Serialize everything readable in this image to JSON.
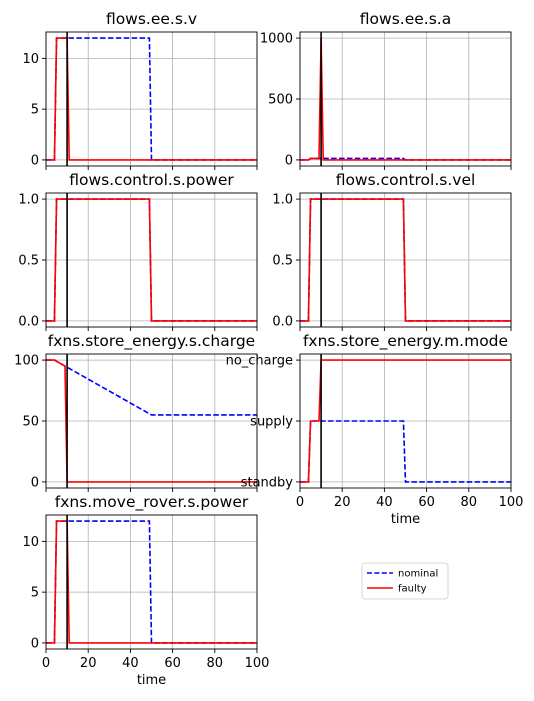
{
  "legend": {
    "entries": [
      {
        "label": "nominal",
        "color": "#0000ff",
        "style": "dashed"
      },
      {
        "label": "faulty",
        "color": "#ff0000",
        "style": "solid"
      }
    ]
  },
  "chart_data": [
    {
      "type": "line",
      "title": "flows.ee.s.v",
      "xlabel": "",
      "xlim": [
        0,
        100
      ],
      "ylim": [
        -0.6,
        12.6
      ],
      "xticks": [
        0,
        20,
        40,
        60,
        80,
        100
      ],
      "show_xticklabels": false,
      "yticks": [
        0,
        5,
        10
      ],
      "ytick_labels": [
        "0",
        "5",
        "10"
      ],
      "fault_time": 10,
      "series": [
        {
          "name": "nominal",
          "x": [
            0,
            4,
            5,
            49,
            50,
            100
          ],
          "y": [
            0,
            0,
            12,
            12,
            0,
            0
          ]
        },
        {
          "name": "faulty",
          "x": [
            0,
            4,
            5,
            10,
            11,
            100
          ],
          "y": [
            0,
            0,
            12,
            12,
            0,
            0
          ]
        }
      ]
    },
    {
      "type": "line",
      "title": "flows.ee.s.a",
      "xlabel": "",
      "xlim": [
        0,
        100
      ],
      "ylim": [
        -50,
        1050
      ],
      "xticks": [
        0,
        20,
        40,
        60,
        80,
        100
      ],
      "show_xticklabels": false,
      "yticks": [
        0,
        500,
        1000
      ],
      "ytick_labels": [
        "0",
        "500",
        "1000"
      ],
      "fault_time": 10,
      "series": [
        {
          "name": "nominal",
          "x": [
            0,
            4,
            5,
            49,
            50,
            100
          ],
          "y": [
            0,
            0,
            12,
            12,
            0,
            0
          ]
        },
        {
          "name": "faulty",
          "x": [
            0,
            4,
            5,
            9,
            10,
            11,
            100
          ],
          "y": [
            0,
            0,
            12,
            12,
            1000,
            0,
            0
          ]
        }
      ]
    },
    {
      "type": "line",
      "title": "flows.control.s.power",
      "xlabel": "",
      "xlim": [
        0,
        100
      ],
      "ylim": [
        -0.05,
        1.05
      ],
      "xticks": [
        0,
        20,
        40,
        60,
        80,
        100
      ],
      "show_xticklabels": false,
      "yticks": [
        0,
        0.5,
        1.0
      ],
      "ytick_labels": [
        "0.0",
        "0.5",
        "1.0"
      ],
      "fault_time": 10,
      "series": [
        {
          "name": "nominal",
          "x": [
            0,
            4,
            5,
            49,
            50,
            100
          ],
          "y": [
            0,
            0,
            1,
            1,
            0,
            0
          ]
        },
        {
          "name": "faulty",
          "x": [
            0,
            4,
            5,
            49,
            50,
            100
          ],
          "y": [
            0,
            0,
            1,
            1,
            0,
            0
          ]
        }
      ]
    },
    {
      "type": "line",
      "title": "flows.control.s.vel",
      "xlabel": "",
      "xlim": [
        0,
        100
      ],
      "ylim": [
        -0.05,
        1.05
      ],
      "xticks": [
        0,
        20,
        40,
        60,
        80,
        100
      ],
      "show_xticklabels": false,
      "yticks": [
        0,
        0.5,
        1.0
      ],
      "ytick_labels": [
        "0.0",
        "0.5",
        "1.0"
      ],
      "fault_time": 10,
      "series": [
        {
          "name": "nominal",
          "x": [
            0,
            4,
            5,
            49,
            50,
            100
          ],
          "y": [
            0,
            0,
            1,
            1,
            0,
            0
          ]
        },
        {
          "name": "faulty",
          "x": [
            0,
            4,
            5,
            49,
            50,
            100
          ],
          "y": [
            0,
            0,
            1,
            1,
            0,
            0
          ]
        }
      ]
    },
    {
      "type": "line",
      "title": "fxns.store_energy.s.charge",
      "xlabel": "",
      "xlim": [
        0,
        100
      ],
      "ylim": [
        -5,
        105
      ],
      "xticks": [
        0,
        20,
        40,
        60,
        80,
        100
      ],
      "show_xticklabels": false,
      "yticks": [
        0,
        50,
        100
      ],
      "ytick_labels": [
        "0",
        "50",
        "100"
      ],
      "fault_time": 10,
      "series": [
        {
          "name": "nominal",
          "x": [
            0,
            4,
            50,
            100
          ],
          "y": [
            100,
            100,
            55,
            55
          ]
        },
        {
          "name": "faulty",
          "x": [
            0,
            4,
            9,
            10,
            100
          ],
          "y": [
            100,
            100,
            95,
            0,
            0
          ]
        }
      ]
    },
    {
      "type": "line",
      "title": "fxns.store_energy.m.mode",
      "xlabel": "time",
      "xlim": [
        0,
        100
      ],
      "ylim": [
        -0.1,
        2.1
      ],
      "xticks": [
        0,
        20,
        40,
        60,
        80,
        100
      ],
      "show_xticklabels": true,
      "yticks": [
        0,
        1,
        2
      ],
      "ytick_labels": [
        "standby",
        "supply",
        "no_charge"
      ],
      "fault_time": 10,
      "series": [
        {
          "name": "nominal",
          "x": [
            0,
            4,
            5,
            49,
            50,
            100
          ],
          "y": [
            0,
            0,
            1,
            1,
            0,
            0
          ]
        },
        {
          "name": "faulty",
          "x": [
            0,
            4,
            5,
            9,
            10,
            100
          ],
          "y": [
            0,
            0,
            1,
            1,
            2,
            2
          ]
        }
      ]
    },
    {
      "type": "line",
      "title": "fxns.move_rover.s.power",
      "xlabel": "time",
      "xlim": [
        0,
        100
      ],
      "ylim": [
        -0.6,
        12.6
      ],
      "xticks": [
        0,
        20,
        40,
        60,
        80,
        100
      ],
      "show_xticklabels": true,
      "yticks": [
        0,
        5,
        10
      ],
      "ytick_labels": [
        "0",
        "5",
        "10"
      ],
      "fault_time": 10,
      "series": [
        {
          "name": "nominal",
          "x": [
            0,
            4,
            5,
            49,
            50,
            100
          ],
          "y": [
            0,
            0,
            12,
            12,
            0,
            0
          ]
        },
        {
          "name": "faulty",
          "x": [
            0,
            4,
            5,
            10,
            11,
            100
          ],
          "y": [
            0,
            0,
            12,
            12,
            0,
            0
          ]
        }
      ]
    }
  ]
}
